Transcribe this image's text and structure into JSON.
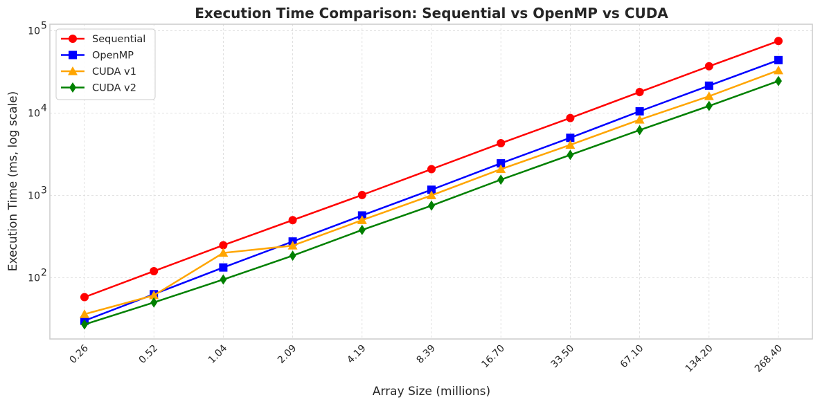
{
  "chart_data": {
    "type": "line",
    "title": "Execution Time Comparison: Sequential vs OpenMP vs CUDA",
    "xlabel": "Array Size (millions)",
    "ylabel": "Execution Time (ms, log scale)",
    "categories": [
      "0.26",
      "0.52",
      "1.04",
      "2.09",
      "4.19",
      "8.39",
      "16.70",
      "33.50",
      "67.10",
      "134.20",
      "268.40"
    ],
    "yscale": "log",
    "ylim": [
      18,
      120000
    ],
    "ytick_labels": [
      {
        "value": 100,
        "base": "10",
        "exp": "2"
      },
      {
        "value": 1000,
        "base": "10",
        "exp": "3"
      },
      {
        "value": 10000,
        "base": "10",
        "exp": "4"
      },
      {
        "value": 100000,
        "base": "10",
        "exp": "5"
      }
    ],
    "grid": true,
    "legend_position": "top-left",
    "series": [
      {
        "name": "Sequential",
        "color": "#ff0000",
        "marker": "circle",
        "values": [
          58,
          120,
          248,
          500,
          1010,
          2080,
          4300,
          8700,
          18000,
          37000,
          75000
        ]
      },
      {
        "name": "OpenMP",
        "color": "#0000ff",
        "marker": "square",
        "values": [
          30,
          63,
          133,
          275,
          570,
          1170,
          2450,
          5000,
          10500,
          21500,
          44000
        ]
      },
      {
        "name": "CUDA v1",
        "color": "#ffa500",
        "marker": "triangle",
        "values": [
          36,
          61,
          200,
          245,
          500,
          1000,
          2080,
          4100,
          8300,
          16000,
          33000
        ]
      },
      {
        "name": "CUDA v2",
        "color": "#008000",
        "marker": "diamond",
        "values": [
          27,
          50,
          95,
          185,
          380,
          750,
          1550,
          3100,
          6200,
          12200,
          24500
        ]
      }
    ]
  }
}
